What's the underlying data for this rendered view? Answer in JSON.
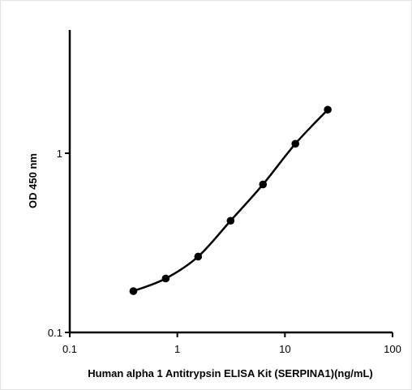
{
  "chart_data": {
    "type": "line",
    "title": "",
    "xlabel": "Human alpha 1 Antitrypsin ELISA Kit (SERPINA1)(ng/mL)",
    "ylabel": "OD 450 nm",
    "x_scale": "log",
    "y_scale": "log",
    "xlim": [
      0.1,
      100
    ],
    "ylim": [
      0.1,
      5
    ],
    "x_ticks": [
      {
        "value": 0.1,
        "label": "0.1"
      },
      {
        "value": 1,
        "label": "1"
      },
      {
        "value": 10,
        "label": "10"
      },
      {
        "value": 100,
        "label": "100"
      }
    ],
    "y_ticks": [
      {
        "value": 0.1,
        "label": "0.1"
      },
      {
        "value": 1,
        "label": "1"
      }
    ],
    "grid": false,
    "legend": "none",
    "series": [
      {
        "x": [
          0.39,
          0.78,
          1.56,
          3.125,
          6.25,
          12.5,
          25
        ],
        "y": [
          0.17,
          0.2,
          0.265,
          0.42,
          0.67,
          1.13,
          1.75
        ]
      }
    ]
  },
  "colors": {
    "line": "#000000",
    "marker": "#000000",
    "axis": "#000000",
    "frame": "#e3e3e3"
  }
}
